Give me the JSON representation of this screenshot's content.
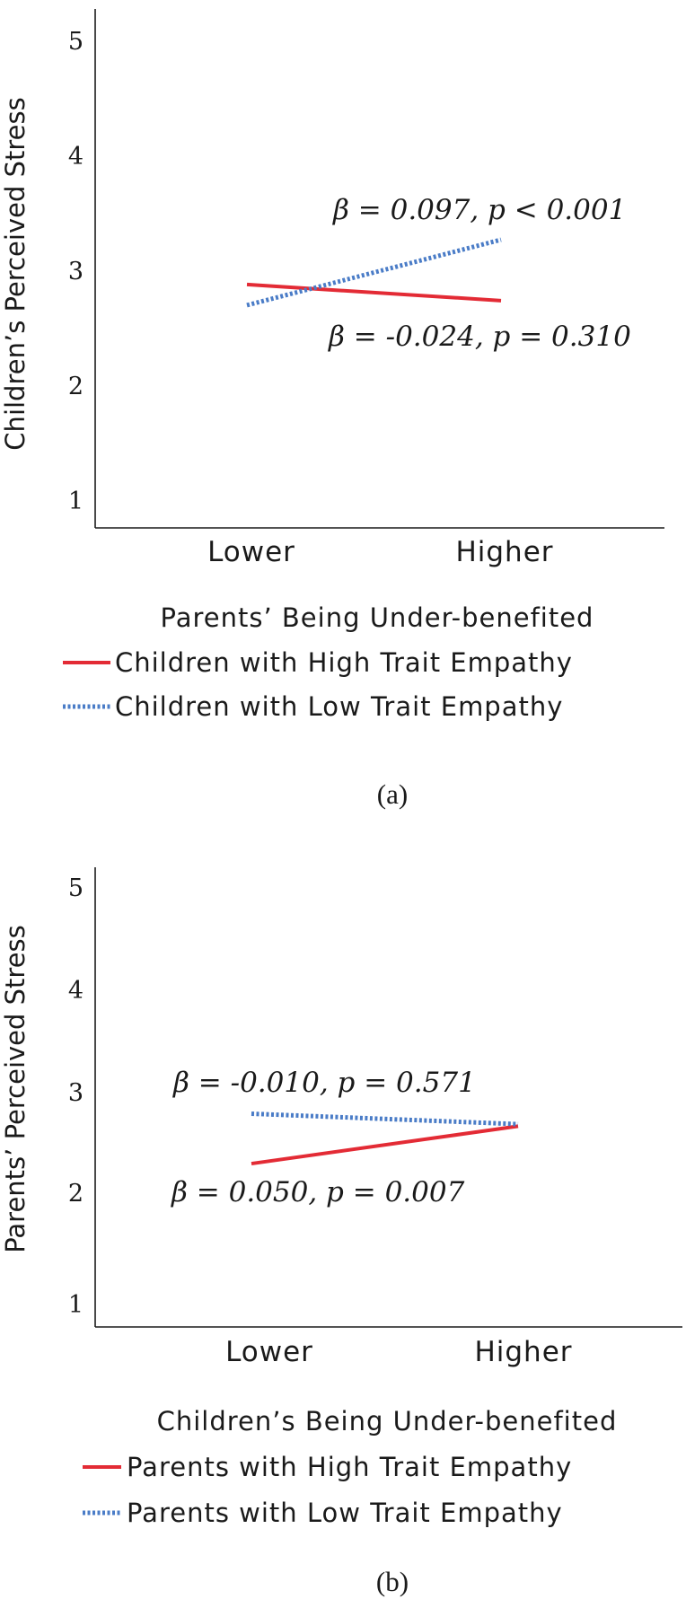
{
  "chart_data": [
    {
      "type": "line",
      "panel_label": "(a)",
      "ylabel": "Children’s Perceived Stress",
      "xlabel": "Parents’ Being Under-benefited",
      "categories": [
        "Lower",
        "Higher"
      ],
      "ylim": [
        0.7,
        5.2
      ],
      "yticks": [
        "1",
        "2",
        "3",
        "4",
        "5"
      ],
      "grid": false,
      "series": [
        {
          "name": "Children with High Trait Empathy",
          "values": [
            2.86,
            2.72
          ],
          "color": "#e32b35",
          "dash": "solid"
        },
        {
          "name": "Children with Low Trait Empathy",
          "values": [
            2.68,
            3.25
          ],
          "color": "#4a7cc7",
          "dash": "dotted"
        }
      ],
      "annotations": [
        "β = 0.097, p < 0.001",
        "β = -0.024, p = 0.310"
      ]
    },
    {
      "type": "line",
      "panel_label": "(b)",
      "ylabel": "Parents’ Perceived Stress",
      "xlabel": "Children’s Being Under-benefited",
      "categories": [
        "Lower",
        "Higher"
      ],
      "ylim": [
        0.7,
        5.2
      ],
      "yticks": [
        "1",
        "2",
        "3",
        "4",
        "5"
      ],
      "grid": false,
      "series": [
        {
          "name": "Parents with High Trait Empathy",
          "values": [
            2.33,
            2.69
          ],
          "color": "#e32b35",
          "dash": "solid"
        },
        {
          "name": "Parents with Low Trait Empathy",
          "values": [
            2.81,
            2.71
          ],
          "color": "#4a7cc7",
          "dash": "dotted"
        }
      ],
      "annotations": [
        "β = -0.010, p = 0.571",
        "β = 0.050, p = 0.007"
      ]
    }
  ]
}
